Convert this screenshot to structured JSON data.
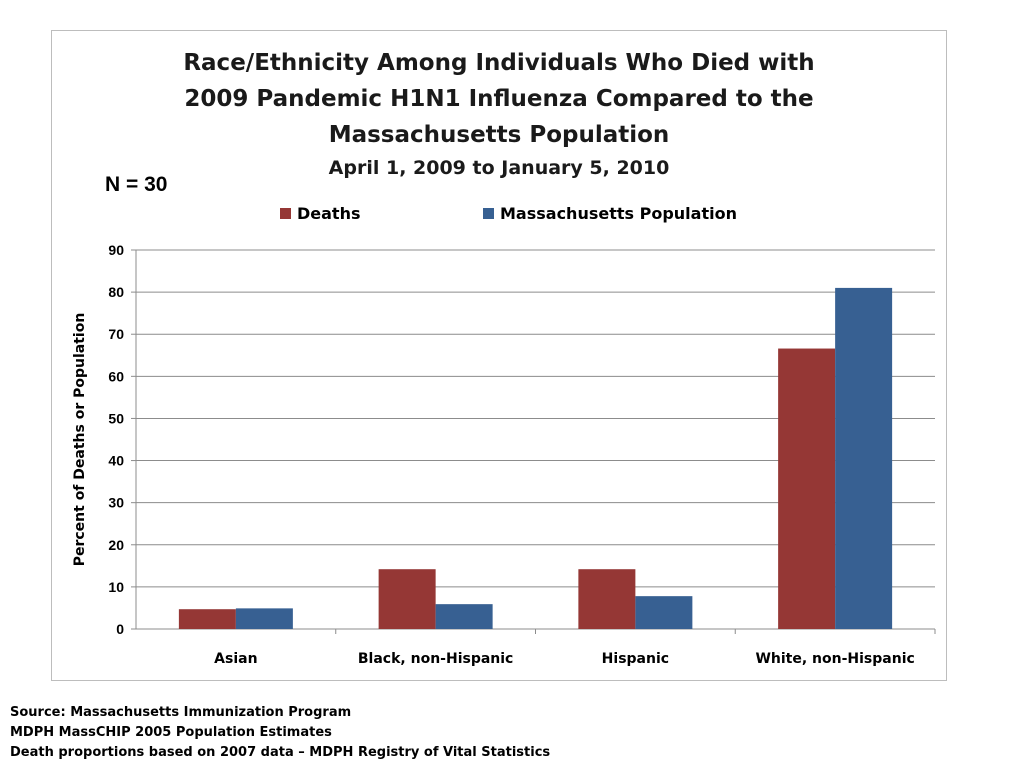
{
  "chart_data": {
    "type": "bar",
    "title_lines": [
      "Race/Ethnicity Among  Individuals Who Died with",
      "2009 Pandemic H1N1 Influenza Compared to the",
      "Massachusetts Population"
    ],
    "subtitle": "April 1, 2009 to January 5, 2010",
    "annotation": "N = 30",
    "xlabel": "",
    "ylabel": "Percent of Deaths or Population",
    "ylim": [
      0,
      90
    ],
    "yticks": [
      0,
      10,
      20,
      30,
      40,
      50,
      60,
      70,
      80,
      90
    ],
    "grid": true,
    "legend_position": "top",
    "categories": [
      "Asian",
      "Black, non-Hispanic",
      "Hispanic",
      "White, non-Hispanic"
    ],
    "series": [
      {
        "name": "Deaths",
        "color": "#953735",
        "values": [
          4.7,
          14.2,
          14.2,
          66.6
        ]
      },
      {
        "name": "Massachusetts Population",
        "color": "#376092",
        "values": [
          4.9,
          5.9,
          7.8,
          81.0
        ]
      }
    ]
  },
  "source": {
    "lines": [
      "Source: Massachusetts Immunization Program",
      "MDPH MassCHIP 2005 Population Estimates",
      "Death proportions based on 2007 data – MDPH Registry of Vital Statistics"
    ]
  }
}
